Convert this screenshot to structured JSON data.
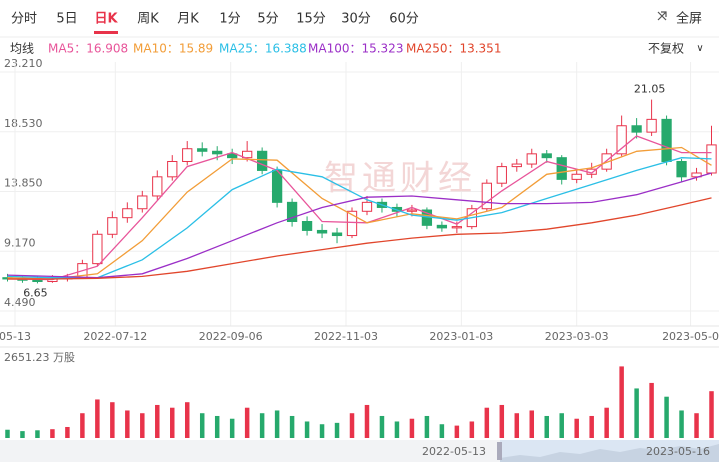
{
  "toolbar": {
    "tabs": [
      "分时",
      "5日",
      "日K",
      "周K",
      "月K",
      "1分",
      "5分",
      "15分",
      "30分",
      "60分"
    ],
    "active": 2,
    "fullscreen": "全屏",
    "ma_label": "均线",
    "adjust": "不复权"
  },
  "chart_data": [
    {
      "type": "candlestick",
      "watermark": "智通财经",
      "categories": [
        null,
        null,
        null,
        null,
        null,
        null,
        null,
        null,
        null,
        null,
        null,
        null,
        null,
        null,
        null,
        null,
        null,
        null,
        null,
        null,
        null,
        null,
        null,
        null,
        null,
        null,
        null,
        null,
        null,
        null,
        null,
        null,
        null,
        null,
        null,
        null,
        null,
        null,
        null,
        null,
        null,
        null,
        null,
        null,
        null,
        null,
        null,
        null
      ],
      "open": [
        7.1,
        7.0,
        6.9,
        6.8,
        7.0,
        7.1,
        8.2,
        10.5,
        11.8,
        12.5,
        13.5,
        15.0,
        16.2,
        17.2,
        17.0,
        16.8,
        16.5,
        17.0,
        15.5,
        13.0,
        11.5,
        10.8,
        10.6,
        10.4,
        12.3,
        13.0,
        12.6,
        12.3,
        12.4,
        11.2,
        11.0,
        11.1,
        12.5,
        14.5,
        15.8,
        16.0,
        16.8,
        16.5,
        14.8,
        15.2,
        15.6,
        16.8,
        19.0,
        18.5,
        19.5,
        16.2,
        15.0,
        15.3
      ],
      "high": [
        7.4,
        7.3,
        7.2,
        7.3,
        7.4,
        8.5,
        10.8,
        12.3,
        13.0,
        13.9,
        15.5,
        16.7,
        17.8,
        17.7,
        17.4,
        17.2,
        17.8,
        17.3,
        15.8,
        13.3,
        11.9,
        11.3,
        11.0,
        12.6,
        13.5,
        13.3,
        12.9,
        12.8,
        12.6,
        11.5,
        11.5,
        12.8,
        14.8,
        16.1,
        16.4,
        17.2,
        17.1,
        16.7,
        15.6,
        16.1,
        17.2,
        19.8,
        19.6,
        21.05,
        19.8,
        16.4,
        15.7,
        19.0
      ],
      "low": [
        6.8,
        6.7,
        6.65,
        6.7,
        6.8,
        7.0,
        8.0,
        10.2,
        11.4,
        12.2,
        13.2,
        14.7,
        15.9,
        16.6,
        16.3,
        16.0,
        16.2,
        15.2,
        12.6,
        11.1,
        10.4,
        10.2,
        9.8,
        10.2,
        12.0,
        12.2,
        11.9,
        11.9,
        10.9,
        10.7,
        10.6,
        10.9,
        12.3,
        14.2,
        15.4,
        15.7,
        16.1,
        14.4,
        14.5,
        14.9,
        15.4,
        16.6,
        18.0,
        18.2,
        15.9,
        14.6,
        14.7,
        15.1
      ],
      "close": [
        7.0,
        6.9,
        6.8,
        7.0,
        7.1,
        8.2,
        10.5,
        11.8,
        12.5,
        13.5,
        15.0,
        16.2,
        17.2,
        17.0,
        16.8,
        16.5,
        17.0,
        15.5,
        13.0,
        11.5,
        10.8,
        10.6,
        10.4,
        12.3,
        13.0,
        12.6,
        12.3,
        12.4,
        11.2,
        11.0,
        11.1,
        12.5,
        14.5,
        15.8,
        16.0,
        16.8,
        16.5,
        14.8,
        15.2,
        15.6,
        16.8,
        19.0,
        18.5,
        19.5,
        16.2,
        15.0,
        15.3,
        17.5
      ],
      "up_color": "#e8334a",
      "down_color": "#26a96c",
      "xlim": [
        0,
        48
      ],
      "xticks": [
        {
          "value": 1.0,
          "label": "05-13"
        },
        {
          "value": 7.7,
          "label": "2022-07-12"
        },
        {
          "value": 15.4,
          "label": "2022-09-06"
        },
        {
          "value": 23.1,
          "label": "2022-11-03"
        },
        {
          "value": 30.8,
          "label": "2023-01-03"
        },
        {
          "value": 38.5,
          "label": "2023-03-03"
        },
        {
          "value": 46.1,
          "label": "2023-05-0"
        }
      ],
      "ylim": [
        4.49,
        23.21
      ],
      "yticks": [
        {
          "value": 4.49,
          "label": "4.490"
        },
        {
          "value": 9.17,
          "label": "9.170"
        },
        {
          "value": 13.85,
          "label": "13.850"
        },
        {
          "value": 18.53,
          "label": "18.530"
        },
        {
          "value": 23.21,
          "label": "23.210"
        }
      ],
      "grid": true,
      "lines": [
        {
          "name": "MA5：16.908",
          "color": "#e8559a",
          "x": [
            0.5,
            3.5,
            6.5,
            9.5,
            12.5,
            15.5,
            18.5,
            21.5,
            24.5,
            27.5,
            30.5,
            33.5,
            36.5,
            39.5,
            42.5,
            45.5,
            47.5
          ],
          "values": [
            7.0,
            6.95,
            8.0,
            11.8,
            15.8,
            16.9,
            15.5,
            11.5,
            11.4,
            12.6,
            11.3,
            13.9,
            16.2,
            15.3,
            18.2,
            16.9,
            16.9
          ]
        },
        {
          "name": "MA10：15.89",
          "color": "#f29d38",
          "x": [
            0.5,
            3.5,
            6.5,
            9.5,
            12.5,
            15.5,
            18.5,
            21.5,
            24.5,
            27.5,
            30.5,
            33.5,
            36.5,
            39.5,
            42.5,
            45.5,
            47.5
          ],
          "values": [
            7.1,
            7.0,
            7.4,
            10.0,
            13.8,
            16.4,
            16.3,
            13.3,
            11.4,
            12.1,
            11.7,
            12.6,
            15.2,
            15.7,
            17.0,
            17.3,
            15.9
          ]
        },
        {
          "name": "MA25：16.388",
          "color": "#2bbfe6",
          "x": [
            0.5,
            3.5,
            6.5,
            9.5,
            12.5,
            15.5,
            18.5,
            21.5,
            24.5,
            27.5,
            30.5,
            33.5,
            36.5,
            39.5,
            42.5,
            45.5,
            47.5
          ],
          "values": [
            7.2,
            7.1,
            7.1,
            8.5,
            11.0,
            14.0,
            15.6,
            15.0,
            13.2,
            12.0,
            11.6,
            12.2,
            13.3,
            14.4,
            15.5,
            16.5,
            16.4
          ]
        },
        {
          "name": "MA100：15.323",
          "color": "#9b2fc7",
          "x": [
            0.5,
            3.5,
            6.5,
            9.5,
            12.5,
            15.5,
            18.5,
            21.5,
            24.5,
            27.5,
            30.5,
            33.5,
            36.5,
            39.5,
            42.5,
            45.5,
            47.5
          ],
          "values": [
            7.3,
            7.2,
            7.1,
            7.4,
            8.6,
            10.0,
            11.4,
            12.6,
            13.4,
            13.5,
            13.2,
            12.9,
            12.9,
            13.0,
            13.6,
            14.6,
            15.3
          ]
        },
        {
          "name": "MA250：13.351",
          "color": "#e1462c",
          "x": [
            0.5,
            3.5,
            6.5,
            9.5,
            12.5,
            15.5,
            18.5,
            21.5,
            24.5,
            27.5,
            30.5,
            33.5,
            36.5,
            39.5,
            42.5,
            45.5,
            47.5
          ],
          "values": [
            7.0,
            7.0,
            7.05,
            7.2,
            7.6,
            8.2,
            8.8,
            9.3,
            9.8,
            10.2,
            10.5,
            10.6,
            10.9,
            11.4,
            12.0,
            12.8,
            13.35
          ]
        }
      ],
      "annotations": [
        {
          "text": "21.05",
          "x": 43.5,
          "y": 21.05
        },
        {
          "text": "6.65",
          "x": 2.5,
          "y": 6.65
        }
      ]
    },
    {
      "type": "bar",
      "categories": [
        null,
        null,
        null,
        null,
        null,
        null,
        null,
        null,
        null,
        null,
        null,
        null,
        null,
        null,
        null,
        null,
        null,
        null,
        null,
        null,
        null,
        null,
        null,
        null,
        null,
        null,
        null,
        null,
        null,
        null,
        null,
        null,
        null,
        null,
        null,
        null,
        null,
        null,
        null,
        null,
        null,
        null,
        null,
        null,
        null,
        null,
        null,
        null
      ],
      "values": [
        300,
        250,
        280,
        320,
        400,
        900,
        1400,
        1300,
        1000,
        900,
        1200,
        1100,
        1300,
        900,
        800,
        700,
        1100,
        900,
        1000,
        800,
        600,
        500,
        550,
        900,
        1200,
        800,
        600,
        700,
        800,
        500,
        450,
        600,
        1100,
        1200,
        900,
        1000,
        800,
        900,
        700,
        800,
        1100,
        2600,
        1800,
        2000,
        1500,
        1000,
        900,
        1700
      ],
      "ylim": [
        0,
        2651.23
      ],
      "yticks": [
        {
          "value": 2651.23,
          "label": "2651.23 万股"
        }
      ]
    }
  ],
  "navigator": {
    "start": "2022-05-13",
    "end": "2023-05-16"
  }
}
